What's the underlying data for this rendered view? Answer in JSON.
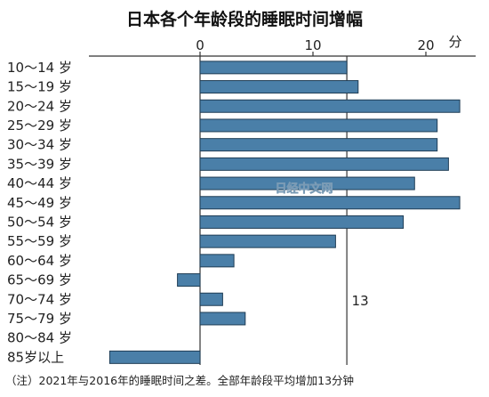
{
  "chart_data": {
    "type": "bar",
    "orientation": "horizontal",
    "title": "日本各个年龄段的睡眠时间增幅",
    "unit": "分",
    "xlim": [
      -8,
      23
    ],
    "ticks": [
      0,
      10,
      20
    ],
    "tick_labels": [
      "0",
      "10",
      "20"
    ],
    "grid": false,
    "reference_line": {
      "value": 13,
      "label": "13"
    },
    "categories": [
      "10～14 岁",
      "15～19 岁",
      "20～24 岁",
      "25～29 岁",
      "30～34 岁",
      "35～39 岁",
      "40～44 岁",
      "45～49 岁",
      "50～54 岁",
      "55～59 岁",
      "60～64 岁",
      "65～69 岁",
      "70～74 岁",
      "75～79 岁",
      "80～84 岁",
      "85岁以上"
    ],
    "values": [
      13,
      14,
      23,
      21,
      21,
      22,
      19,
      23,
      18,
      12,
      3,
      -2,
      2,
      4,
      0,
      -8
    ],
    "bar_color": "#4a7fa8",
    "note": "（注）2021年与2016年的睡眠时间之差。全部年龄段平均增加13分钟",
    "watermark": "日经中文网"
  }
}
